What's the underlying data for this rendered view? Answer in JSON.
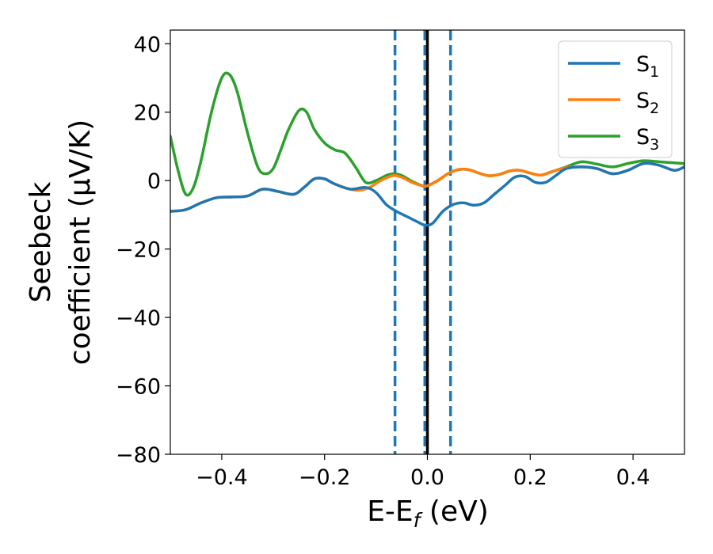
{
  "chart_data": {
    "type": "line",
    "title": "",
    "xlabel": {
      "main": "E-E",
      "subscript": "f",
      "suffix": " (eV)"
    },
    "ylabel": {
      "line1": "Seebeck",
      "line2": "coefficient  (μV/K)"
    },
    "xlim": [
      -0.5,
      0.5
    ],
    "ylim": [
      -80,
      44
    ],
    "xticks": [
      -0.4,
      -0.2,
      0.0,
      0.2,
      0.4
    ],
    "xtick_labels": [
      "−0.4",
      "−0.2",
      "0.0",
      "0.2",
      "0.4"
    ],
    "yticks": [
      -80,
      -60,
      -40,
      -20,
      0,
      20,
      40
    ],
    "ytick_labels": [
      "−80",
      "−60",
      "−40",
      "−20",
      "0",
      "20",
      "40"
    ],
    "grid": false,
    "legend_position": "top-right",
    "vlines": [
      {
        "x": -0.063,
        "style": "dashed",
        "color": "#1f77b4"
      },
      {
        "x": -0.005,
        "style": "dashed",
        "color": "#1f77b4"
      },
      {
        "x": 0.0,
        "style": "solid",
        "color": "#000000"
      },
      {
        "x": 0.045,
        "style": "dashed",
        "color": "#1f77b4"
      }
    ],
    "series": [
      {
        "name": "S",
        "subscript": "1",
        "color": "#1f77b4",
        "points": [
          [
            -0.5,
            -9
          ],
          [
            -0.47,
            -8.5
          ],
          [
            -0.44,
            -6.5
          ],
          [
            -0.41,
            -5
          ],
          [
            -0.38,
            -4.8
          ],
          [
            -0.35,
            -4.5
          ],
          [
            -0.32,
            -2.5
          ],
          [
            -0.29,
            -3.2
          ],
          [
            -0.26,
            -4
          ],
          [
            -0.24,
            -2
          ],
          [
            -0.22,
            0.5
          ],
          [
            -0.2,
            0.5
          ],
          [
            -0.18,
            -1
          ],
          [
            -0.15,
            -2.5
          ],
          [
            -0.12,
            -2
          ],
          [
            -0.1,
            -3.5
          ],
          [
            -0.08,
            -7
          ],
          [
            -0.06,
            -9
          ],
          [
            -0.04,
            -10.5
          ],
          [
            -0.02,
            -12
          ],
          [
            -0.005,
            -13
          ],
          [
            0.01,
            -12.5
          ],
          [
            0.03,
            -9
          ],
          [
            0.05,
            -7
          ],
          [
            0.07,
            -6.5
          ],
          [
            0.09,
            -7.2
          ],
          [
            0.11,
            -6.5
          ],
          [
            0.13,
            -4
          ],
          [
            0.15,
            -1.5
          ],
          [
            0.17,
            1
          ],
          [
            0.19,
            1.2
          ],
          [
            0.21,
            -0.5
          ],
          [
            0.23,
            -0.5
          ],
          [
            0.25,
            1.5
          ],
          [
            0.27,
            3.5
          ],
          [
            0.3,
            4
          ],
          [
            0.33,
            3.5
          ],
          [
            0.36,
            2
          ],
          [
            0.39,
            3
          ],
          [
            0.42,
            5
          ],
          [
            0.45,
            4.5
          ],
          [
            0.48,
            3
          ],
          [
            0.5,
            4
          ]
        ]
      },
      {
        "name": "S",
        "subscript": "2",
        "color": "#ff7f0e",
        "points": [
          [
            -0.5,
            -9
          ],
          [
            -0.47,
            -8.5
          ],
          [
            -0.44,
            -6.5
          ],
          [
            -0.41,
            -5
          ],
          [
            -0.38,
            -4.8
          ],
          [
            -0.35,
            -4.5
          ],
          [
            -0.32,
            -2.5
          ],
          [
            -0.29,
            -3.2
          ],
          [
            -0.26,
            -4
          ],
          [
            -0.24,
            -2
          ],
          [
            -0.22,
            0.5
          ],
          [
            -0.2,
            0.5
          ],
          [
            -0.18,
            -1
          ],
          [
            -0.15,
            -2.5
          ],
          [
            -0.13,
            -2.8
          ],
          [
            -0.11,
            -1.8
          ],
          [
            -0.1,
            -0.8
          ],
          [
            -0.08,
            0.8
          ],
          [
            -0.065,
            1.5
          ],
          [
            -0.05,
            1
          ],
          [
            -0.03,
            -0.5
          ],
          [
            -0.01,
            -1.5
          ],
          [
            0.0,
            -1.5
          ],
          [
            0.02,
            0
          ],
          [
            0.04,
            2
          ],
          [
            0.06,
            3.2
          ],
          [
            0.08,
            3.2
          ],
          [
            0.1,
            2.2
          ],
          [
            0.12,
            1.4
          ],
          [
            0.14,
            1.8
          ],
          [
            0.16,
            2.8
          ],
          [
            0.18,
            3
          ],
          [
            0.2,
            2.2
          ],
          [
            0.22,
            1.6
          ],
          [
            0.24,
            2.5
          ],
          [
            0.27,
            3.8
          ],
          [
            0.3,
            4
          ],
          [
            0.33,
            3.5
          ],
          [
            0.36,
            2
          ],
          [
            0.39,
            3
          ],
          [
            0.42,
            5
          ],
          [
            0.45,
            4.5
          ],
          [
            0.48,
            3
          ],
          [
            0.5,
            4
          ]
        ]
      },
      {
        "name": "S",
        "subscript": "3",
        "color": "#2ca02c",
        "points": [
          [
            -0.5,
            13
          ],
          [
            -0.485,
            3
          ],
          [
            -0.47,
            -4
          ],
          [
            -0.455,
            -2
          ],
          [
            -0.44,
            6
          ],
          [
            -0.42,
            20
          ],
          [
            -0.4,
            30
          ],
          [
            -0.385,
            31
          ],
          [
            -0.37,
            26
          ],
          [
            -0.35,
            14
          ],
          [
            -0.33,
            4
          ],
          [
            -0.315,
            2
          ],
          [
            -0.3,
            3.5
          ],
          [
            -0.285,
            9
          ],
          [
            -0.27,
            15
          ],
          [
            -0.25,
            20.5
          ],
          [
            -0.235,
            20
          ],
          [
            -0.22,
            15
          ],
          [
            -0.2,
            11
          ],
          [
            -0.18,
            9
          ],
          [
            -0.16,
            8
          ],
          [
            -0.14,
            4
          ],
          [
            -0.12,
            -0.5
          ],
          [
            -0.1,
            0
          ],
          [
            -0.08,
            1.5
          ],
          [
            -0.065,
            2
          ],
          [
            -0.05,
            1.5
          ],
          [
            -0.03,
            -0.2
          ],
          [
            -0.01,
            -1.5
          ],
          [
            0.0,
            -1.5
          ],
          [
            0.02,
            0
          ],
          [
            0.04,
            2
          ],
          [
            0.06,
            3.2
          ],
          [
            0.08,
            3.2
          ],
          [
            0.1,
            2.2
          ],
          [
            0.12,
            1.4
          ],
          [
            0.14,
            1.8
          ],
          [
            0.16,
            2.8
          ],
          [
            0.18,
            3
          ],
          [
            0.2,
            2.2
          ],
          [
            0.22,
            1.6
          ],
          [
            0.24,
            2.5
          ],
          [
            0.27,
            4
          ],
          [
            0.3,
            5.5
          ],
          [
            0.33,
            4.8
          ],
          [
            0.36,
            4
          ],
          [
            0.39,
            5
          ],
          [
            0.42,
            5.8
          ],
          [
            0.45,
            5.5
          ],
          [
            0.48,
            5.2
          ],
          [
            0.5,
            5
          ]
        ]
      }
    ]
  }
}
